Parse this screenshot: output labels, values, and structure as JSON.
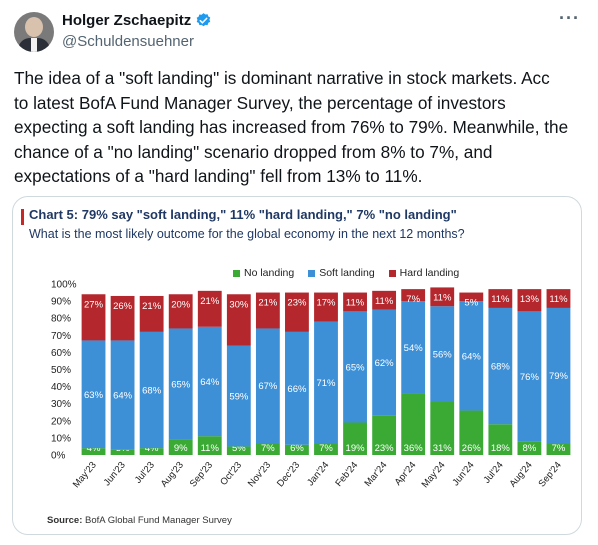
{
  "author": {
    "name": "Holger Zschaepitz",
    "handle": "@Schuldensuehner",
    "verified_color": "#1d9bf0"
  },
  "more_label": "···",
  "tweet_lines": [
    "The idea of a \"soft landing\" is dominant narrative in stock markets. Acc",
    "to latest BofA Fund Manager Survey, the percentage of investors",
    "expecting a soft landing has increased from 76% to 79%. Meanwhile, the",
    "chance of a \"no landing\" scenario dropped from 8% to 7%, and",
    "expectations of a \"hard landing\" fell from 13% to 11%."
  ],
  "chart_data": {
    "type": "bar",
    "stacked": true,
    "title": "Chart 5: 79% say \"soft landing,\" 11% \"hard landing,\" 7% \"no landing\"",
    "subtitle": "What is the most likely outcome for the global economy in the next 12 months?",
    "categories": [
      "May'23",
      "Jun'23",
      "Jul'23",
      "Aug'23",
      "Sep'23",
      "Oct'23",
      "Nov'23",
      "Dec'23",
      "Jan'24",
      "Feb'24",
      "Mar'24",
      "Apr'24",
      "May'24",
      "Jun'24",
      "Jul'24",
      "Aug'24",
      "Sep'24"
    ],
    "series": [
      {
        "name": "No landing",
        "color": "#3aaa35",
        "values": [
          4,
          3,
          4,
          9,
          11,
          5,
          7,
          6,
          7,
          19,
          23,
          36,
          31,
          26,
          18,
          8,
          7
        ]
      },
      {
        "name": "Soft landing",
        "color": "#3d8fd6",
        "values": [
          63,
          64,
          68,
          65,
          64,
          59,
          67,
          66,
          71,
          65,
          62,
          54,
          56,
          64,
          68,
          76,
          79
        ]
      },
      {
        "name": "Hard landing",
        "color": "#b3272d",
        "values": [
          27,
          26,
          21,
          20,
          21,
          30,
          21,
          23,
          17,
          11,
          11,
          7,
          11,
          5,
          11,
          13,
          11
        ]
      }
    ],
    "ylim": [
      0,
      100
    ],
    "yticks": [
      "0%",
      "10%",
      "20%",
      "30%",
      "40%",
      "50%",
      "60%",
      "70%",
      "80%",
      "90%",
      "100%"
    ],
    "legend_position": "top-center",
    "source_label": "Source:",
    "source_text": " BofA Global Fund Manager Survey"
  }
}
